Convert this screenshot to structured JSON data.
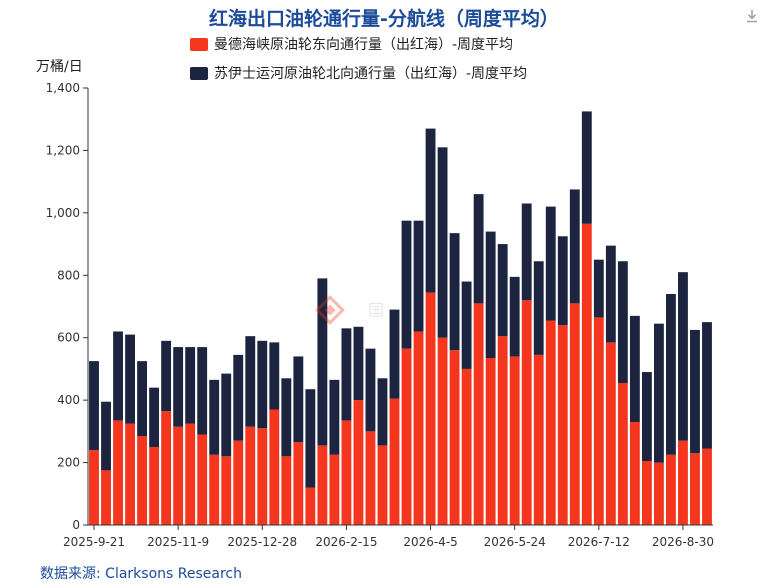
{
  "page": {
    "title": "红海出口油轮通行量-分航线（周度平均）",
    "unit_label": "万桶/日",
    "source": "数据来源: Clarksons Research",
    "watermark": "国",
    "download_icon": "download-icon"
  },
  "chart_data": {
    "type": "bar",
    "stacked": true,
    "title": "红海出口油轮通行量-分航线（周度平均）",
    "ylabel": "万桶/日",
    "ylim": [
      0,
      1400
    ],
    "yticks": [
      0,
      200,
      400,
      600,
      800,
      1000,
      1200,
      1400
    ],
    "ytick_labels": [
      "0",
      "200",
      "400",
      "600",
      "800",
      "1,000",
      "1,200",
      "1,400"
    ],
    "xtick_labels": [
      "2025-9-21",
      "2025-11-9",
      "2025-12-28",
      "2026-2-15",
      "2026-4-5",
      "2026-5-24",
      "2026-7-12",
      "2026-8-30"
    ],
    "xtick_indices": [
      0,
      7,
      14,
      21,
      28,
      35,
      42,
      49
    ],
    "grid": false,
    "legend_position": "top",
    "series": [
      {
        "name": "曼德海峡原油轮东向通行量（出红海）-周度平均",
        "color": "#f4361e",
        "values": [
          240,
          175,
          335,
          325,
          285,
          250,
          365,
          315,
          325,
          290,
          225,
          220,
          270,
          315,
          310,
          370,
          220,
          265,
          120,
          255,
          225,
          335,
          400,
          300,
          255,
          405,
          565,
          620,
          745,
          600,
          560,
          500,
          710,
          535,
          605,
          540,
          720,
          545,
          655,
          640,
          710,
          965,
          665,
          585,
          455,
          330,
          205,
          200,
          225,
          270,
          230,
          245
        ]
      },
      {
        "name": "苏伊士运河原油轮北向通行量（出红海）-周度平均",
        "color": "#1c2440",
        "values": [
          285,
          220,
          285,
          285,
          240,
          190,
          225,
          255,
          245,
          280,
          240,
          265,
          275,
          290,
          280,
          215,
          250,
          275,
          315,
          535,
          240,
          295,
          235,
          265,
          215,
          285,
          410,
          355,
          525,
          610,
          375,
          280,
          350,
          405,
          295,
          255,
          310,
          300,
          365,
          285,
          365,
          360,
          185,
          310,
          390,
          340,
          285,
          445,
          515,
          540,
          395,
          405
        ]
      }
    ]
  }
}
